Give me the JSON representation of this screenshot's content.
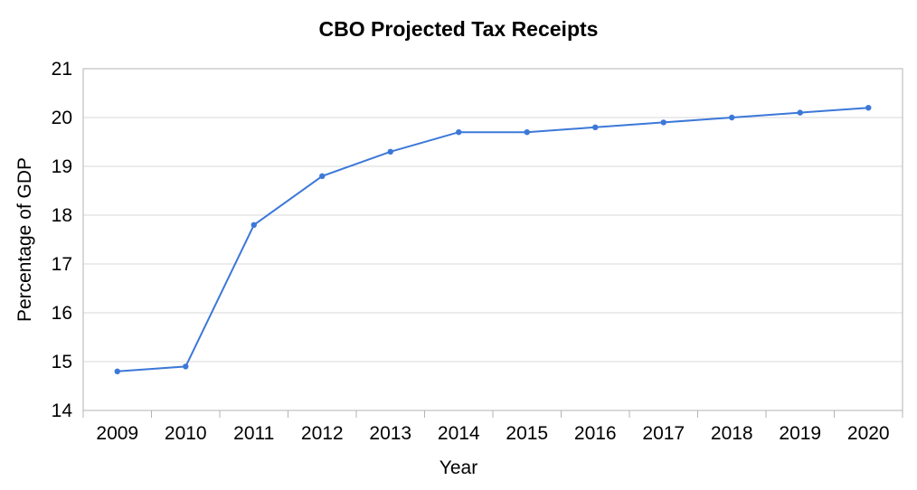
{
  "chart_data": {
    "type": "line",
    "title": "CBO Projected Tax Receipts",
    "xlabel": "Year",
    "ylabel": "Percentage of GDP",
    "categories": [
      "2009",
      "2010",
      "2011",
      "2012",
      "2013",
      "2014",
      "2015",
      "2016",
      "2017",
      "2018",
      "2019",
      "2020"
    ],
    "series": [
      {
        "values": [
          14.8,
          14.9,
          17.8,
          18.8,
          19.3,
          19.7,
          19.7,
          19.8,
          19.9,
          20.0,
          20.1,
          20.2
        ]
      }
    ],
    "ylim": [
      14,
      21
    ],
    "yticks": [
      "14",
      "15",
      "16",
      "17",
      "18",
      "19",
      "20",
      "21"
    ],
    "grid": true,
    "legend": "none",
    "line_color": "#3c78d8",
    "grid_color": "#d9d9d9"
  }
}
